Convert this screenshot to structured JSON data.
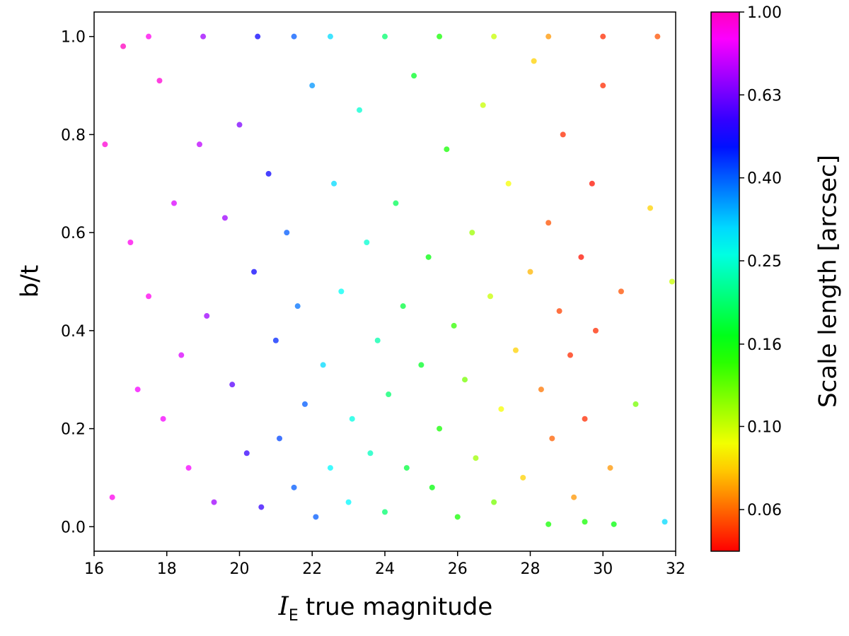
{
  "chart_data": {
    "type": "scatter",
    "xlabel_symbol": "I",
    "xlabel_subscript": "E",
    "xlabel": "true magnitude",
    "ylabel": "b/t",
    "colorbar_label": "Scale length [arcsec]",
    "colormap": "gist_rainbow",
    "color_scale": "log",
    "xlim": [
      16,
      32
    ],
    "ylim": [
      -0.05,
      1.05
    ],
    "xticks": [
      16,
      18,
      20,
      22,
      24,
      26,
      28,
      30,
      32
    ],
    "yticks": [
      {
        "value": 0,
        "label": "0.0"
      },
      0.2,
      0.4,
      0.6,
      0.8,
      {
        "value": 1,
        "label": "1.0"
      }
    ],
    "clim": [
      0.05,
      1.0
    ],
    "cticks": [
      {
        "value": 1,
        "label": "1.00"
      },
      {
        "value": 0.631,
        "label": "0.63"
      },
      {
        "value": 0.398,
        "label": "0.40"
      },
      {
        "value": 0.251,
        "label": "0.25"
      },
      {
        "value": 0.158,
        "label": "0.16"
      },
      {
        "value": 0.1,
        "label": "0.10"
      },
      {
        "value": 0.063,
        "label": "0.06"
      }
    ],
    "x": [
      16.3,
      16.5,
      16.8,
      17.0,
      17.2,
      17.5,
      17.8,
      17.9,
      18.2,
      18.4,
      18.6,
      18.9,
      19.1,
      19.3,
      19.6,
      19.8,
      20.0,
      20.2,
      20.4,
      20.6,
      20.8,
      21.0,
      21.1,
      21.3,
      21.5,
      21.6,
      21.8,
      22.0,
      22.1,
      22.3,
      22.5,
      22.6,
      22.8,
      23.0,
      23.1,
      23.3,
      23.5,
      23.6,
      23.8,
      24.0,
      24.1,
      24.3,
      24.5,
      24.6,
      24.8,
      25.0,
      25.2,
      25.3,
      25.5,
      25.7,
      25.9,
      26.0,
      26.2,
      26.4,
      26.5,
      26.7,
      26.9,
      27.0,
      27.2,
      27.4,
      27.6,
      27.8,
      28.0,
      28.1,
      28.3,
      28.5,
      28.6,
      28.8,
      28.9,
      29.1,
      29.2,
      29.4,
      29.5,
      29.7,
      29.8,
      30.0,
      30.2,
      30.5,
      30.9,
      31.3,
      31.7,
      31.9,
      17.5,
      19,
      20.5,
      21.5,
      22.5,
      24,
      25.5,
      27,
      28.5,
      30,
      31.5,
      29.5,
      30.3,
      28.5
    ],
    "y": [
      0.78,
      0.06,
      0.98,
      0.58,
      0.28,
      0.47,
      0.91,
      0.22,
      0.66,
      0.35,
      0.12,
      0.78,
      0.43,
      0.05,
      0.63,
      0.29,
      0.82,
      0.15,
      0.52,
      0.04,
      0.72,
      0.38,
      0.18,
      0.6,
      0.08,
      0.45,
      0.25,
      0.9,
      0.02,
      0.33,
      0.12,
      0.7,
      0.48,
      0.05,
      0.22,
      0.85,
      0.58,
      0.15,
      0.38,
      0.03,
      0.27,
      0.66,
      0.45,
      0.12,
      0.92,
      0.33,
      0.55,
      0.08,
      0.2,
      0.77,
      0.41,
      0.02,
      0.3,
      0.6,
      0.14,
      0.86,
      0.47,
      0.05,
      0.24,
      0.7,
      0.36,
      0.1,
      0.52,
      0.95,
      0.28,
      0.62,
      0.18,
      0.44,
      0.8,
      0.35,
      0.06,
      0.55,
      0.22,
      0.7,
      0.4,
      0.9,
      0.12,
      0.48,
      0.25,
      0.65,
      0.01,
      0.5,
      1,
      1,
      1,
      1,
      1,
      1,
      1,
      1,
      1,
      1,
      1,
      0.01,
      0.005,
      0.005
    ],
    "c": [
      0.95,
      0.9,
      1.0,
      0.9,
      0.85,
      0.9,
      0.95,
      0.85,
      0.8,
      0.8,
      0.85,
      0.75,
      0.7,
      0.7,
      0.7,
      0.6,
      0.65,
      0.55,
      0.5,
      0.55,
      0.5,
      0.45,
      0.42,
      0.4,
      0.4,
      0.38,
      0.4,
      0.35,
      0.4,
      0.3,
      0.28,
      0.3,
      0.27,
      0.28,
      0.26,
      0.25,
      0.25,
      0.24,
      0.23,
      0.2,
      0.2,
      0.19,
      0.18,
      0.18,
      0.17,
      0.17,
      0.16,
      0.16,
      0.15,
      0.15,
      0.14,
      0.15,
      0.12,
      0.11,
      0.11,
      0.1,
      0.1,
      0.12,
      0.09,
      0.09,
      0.08,
      0.08,
      0.075,
      0.08,
      0.065,
      0.06,
      0.062,
      0.058,
      0.055,
      0.055,
      0.07,
      0.052,
      0.055,
      0.052,
      0.055,
      0.055,
      0.07,
      0.06,
      0.12,
      0.08,
      0.3,
      0.1,
      0.9,
      0.7,
      0.5,
      0.4,
      0.3,
      0.2,
      0.15,
      0.1,
      0.07,
      0.055,
      0.06,
      0.15,
      0.16,
      0.15
    ]
  }
}
